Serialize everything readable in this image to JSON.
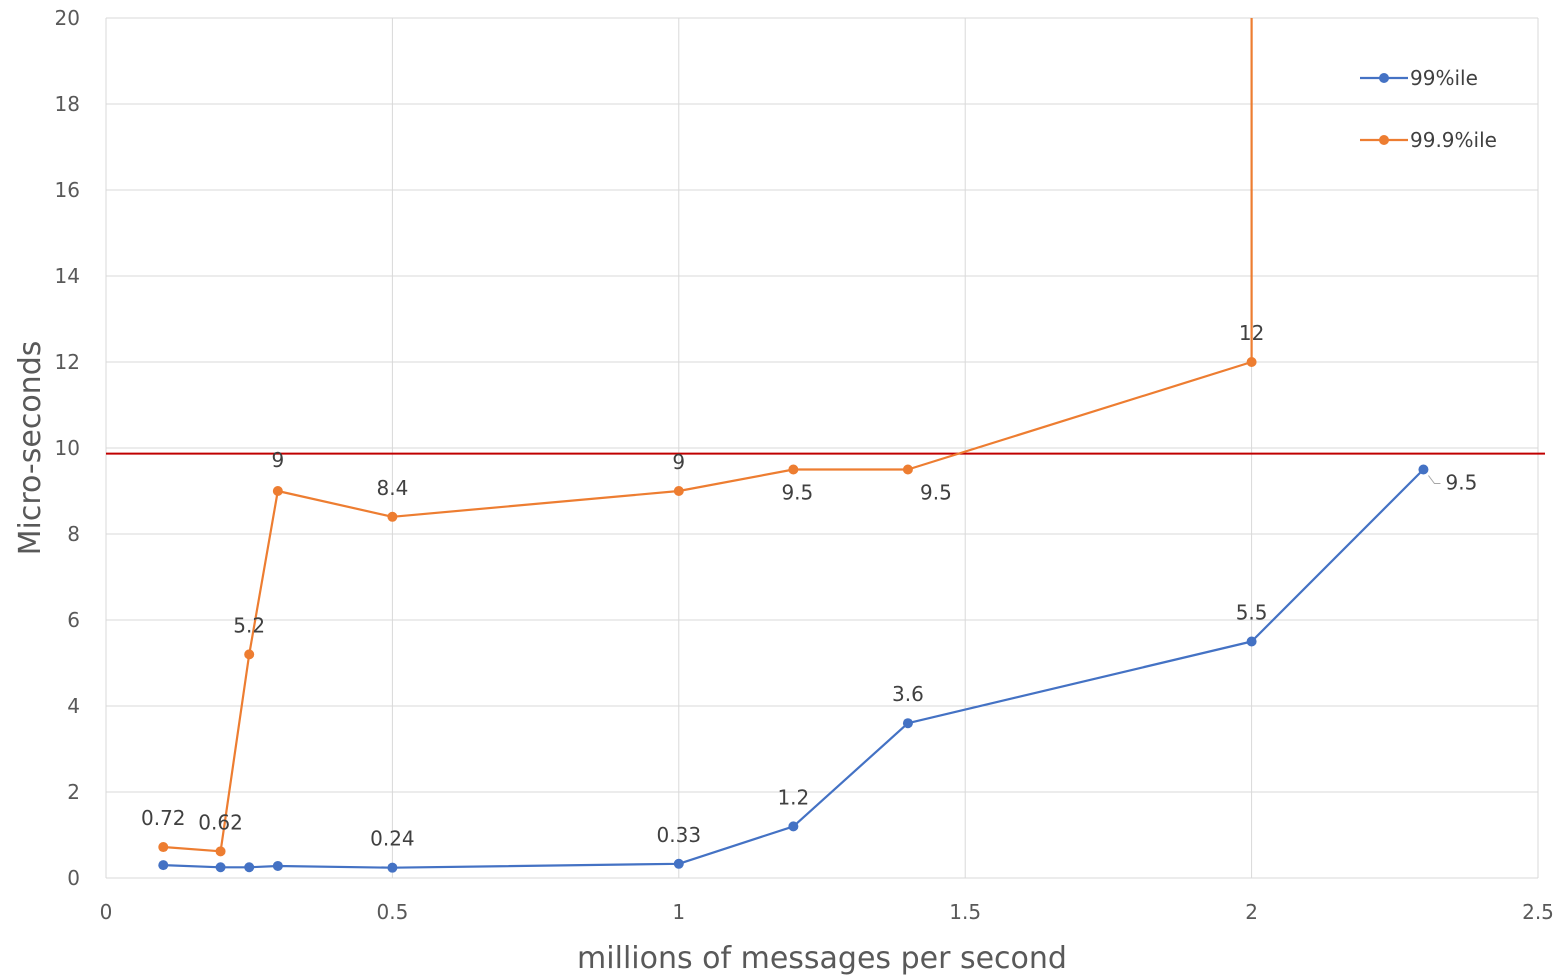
{
  "chart_data": {
    "type": "line",
    "xlabel": "millions of messages per second",
    "ylabel": "Micro-seconds",
    "xlim": [
      0,
      2.5
    ],
    "ylim": [
      0,
      20
    ],
    "xticks": [
      0,
      0.5,
      1,
      1.5,
      2,
      2.5
    ],
    "xtick_labels": [
      "0",
      "0.5",
      "1",
      "1.5",
      "2",
      "2.5"
    ],
    "yticks": [
      0,
      2,
      4,
      6,
      8,
      10,
      12,
      14,
      16,
      18,
      20
    ],
    "ytick_labels": [
      "0",
      "2",
      "4",
      "6",
      "8",
      "10",
      "12",
      "14",
      "16",
      "18",
      "20"
    ],
    "grid": true,
    "legend_position": "top-right",
    "series": [
      {
        "name": "99%ile",
        "color": "#4472C4",
        "points": [
          {
            "x": 0.1,
            "y": 0.3,
            "label": ""
          },
          {
            "x": 0.2,
            "y": 0.25,
            "label": ""
          },
          {
            "x": 0.25,
            "y": 0.25,
            "label": ""
          },
          {
            "x": 0.3,
            "y": 0.28,
            "label": ""
          },
          {
            "x": 0.5,
            "y": 0.24,
            "label": "0.24"
          },
          {
            "x": 1.0,
            "y": 0.33,
            "label": "0.33"
          },
          {
            "x": 1.2,
            "y": 1.2,
            "label": "1.2"
          },
          {
            "x": 1.4,
            "y": 3.6,
            "label": "3.6"
          },
          {
            "x": 2.0,
            "y": 5.5,
            "label": "5.5"
          },
          {
            "x": 2.3,
            "y": 9.5,
            "label": "9.5"
          }
        ]
      },
      {
        "name": "99.9%ile",
        "color": "#ED7D31",
        "points": [
          {
            "x": 0.1,
            "y": 0.72,
            "label": "0.72"
          },
          {
            "x": 0.2,
            "y": 0.62,
            "label": "0.62"
          },
          {
            "x": 0.25,
            "y": 5.2,
            "label": "5.2"
          },
          {
            "x": 0.3,
            "y": 9,
            "label": "9"
          },
          {
            "x": 0.5,
            "y": 8.4,
            "label": "8.4"
          },
          {
            "x": 1.0,
            "y": 9,
            "label": "9"
          },
          {
            "x": 1.2,
            "y": 9.5,
            "label": "9.5"
          },
          {
            "x": 1.4,
            "y": 9.5,
            "label": "9.5"
          },
          {
            "x": 2.0,
            "y": 12,
            "label": "12"
          }
        ],
        "continues_beyond_axis": {
          "x": 2.0,
          "y_direction": "up"
        }
      }
    ],
    "reference_line": {
      "y": 9.87,
      "color": "#C00000"
    }
  }
}
